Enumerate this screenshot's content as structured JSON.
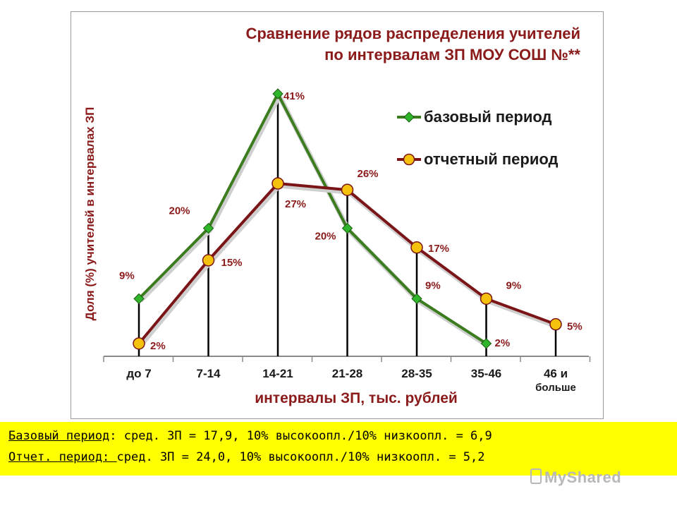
{
  "chart_data": {
    "type": "line",
    "title_line1": "Сравнение рядов распределения учителей",
    "title_line2": "по интервалам ЗП МОУ СОШ №**",
    "xlabel": "интервалы ЗП, тыс. рублей",
    "ylabel": "Доля (%) учителей в интервалах ЗП",
    "categories": [
      "до 7",
      "7-14",
      "14-21",
      "21-28",
      "28-35",
      "35-46",
      "46 и больше"
    ],
    "ylim": [
      0,
      41
    ],
    "legend_position": "right",
    "series": [
      {
        "name": "базовый период",
        "color": "#3b7d1e",
        "marker": "diamond",
        "values": [
          9,
          20,
          41,
          20,
          9,
          2,
          null
        ],
        "labels": [
          "9%",
          "20%",
          "41%",
          "20%",
          "9%",
          "2%",
          ""
        ]
      },
      {
        "name": "отчетный период",
        "color": "#7b1416",
        "marker": "circle",
        "values": [
          2,
          15,
          27,
          26,
          17,
          9,
          5
        ],
        "labels": [
          "2%",
          "15%",
          "27%",
          "26%",
          "17%",
          "9%",
          "5%"
        ]
      }
    ]
  },
  "summary": {
    "line1_key": "Базовый период",
    "line1_text": ": сред. ЗП = 17,9, 10% высокоопл./10% низкоопл. = 6,9",
    "line2_key": "Отчет. период: ",
    "line2_text": "сред. ЗП = 24,0, 10% высокоопл./10% низкоопл. = 5,2"
  },
  "watermark": "MyShared"
}
